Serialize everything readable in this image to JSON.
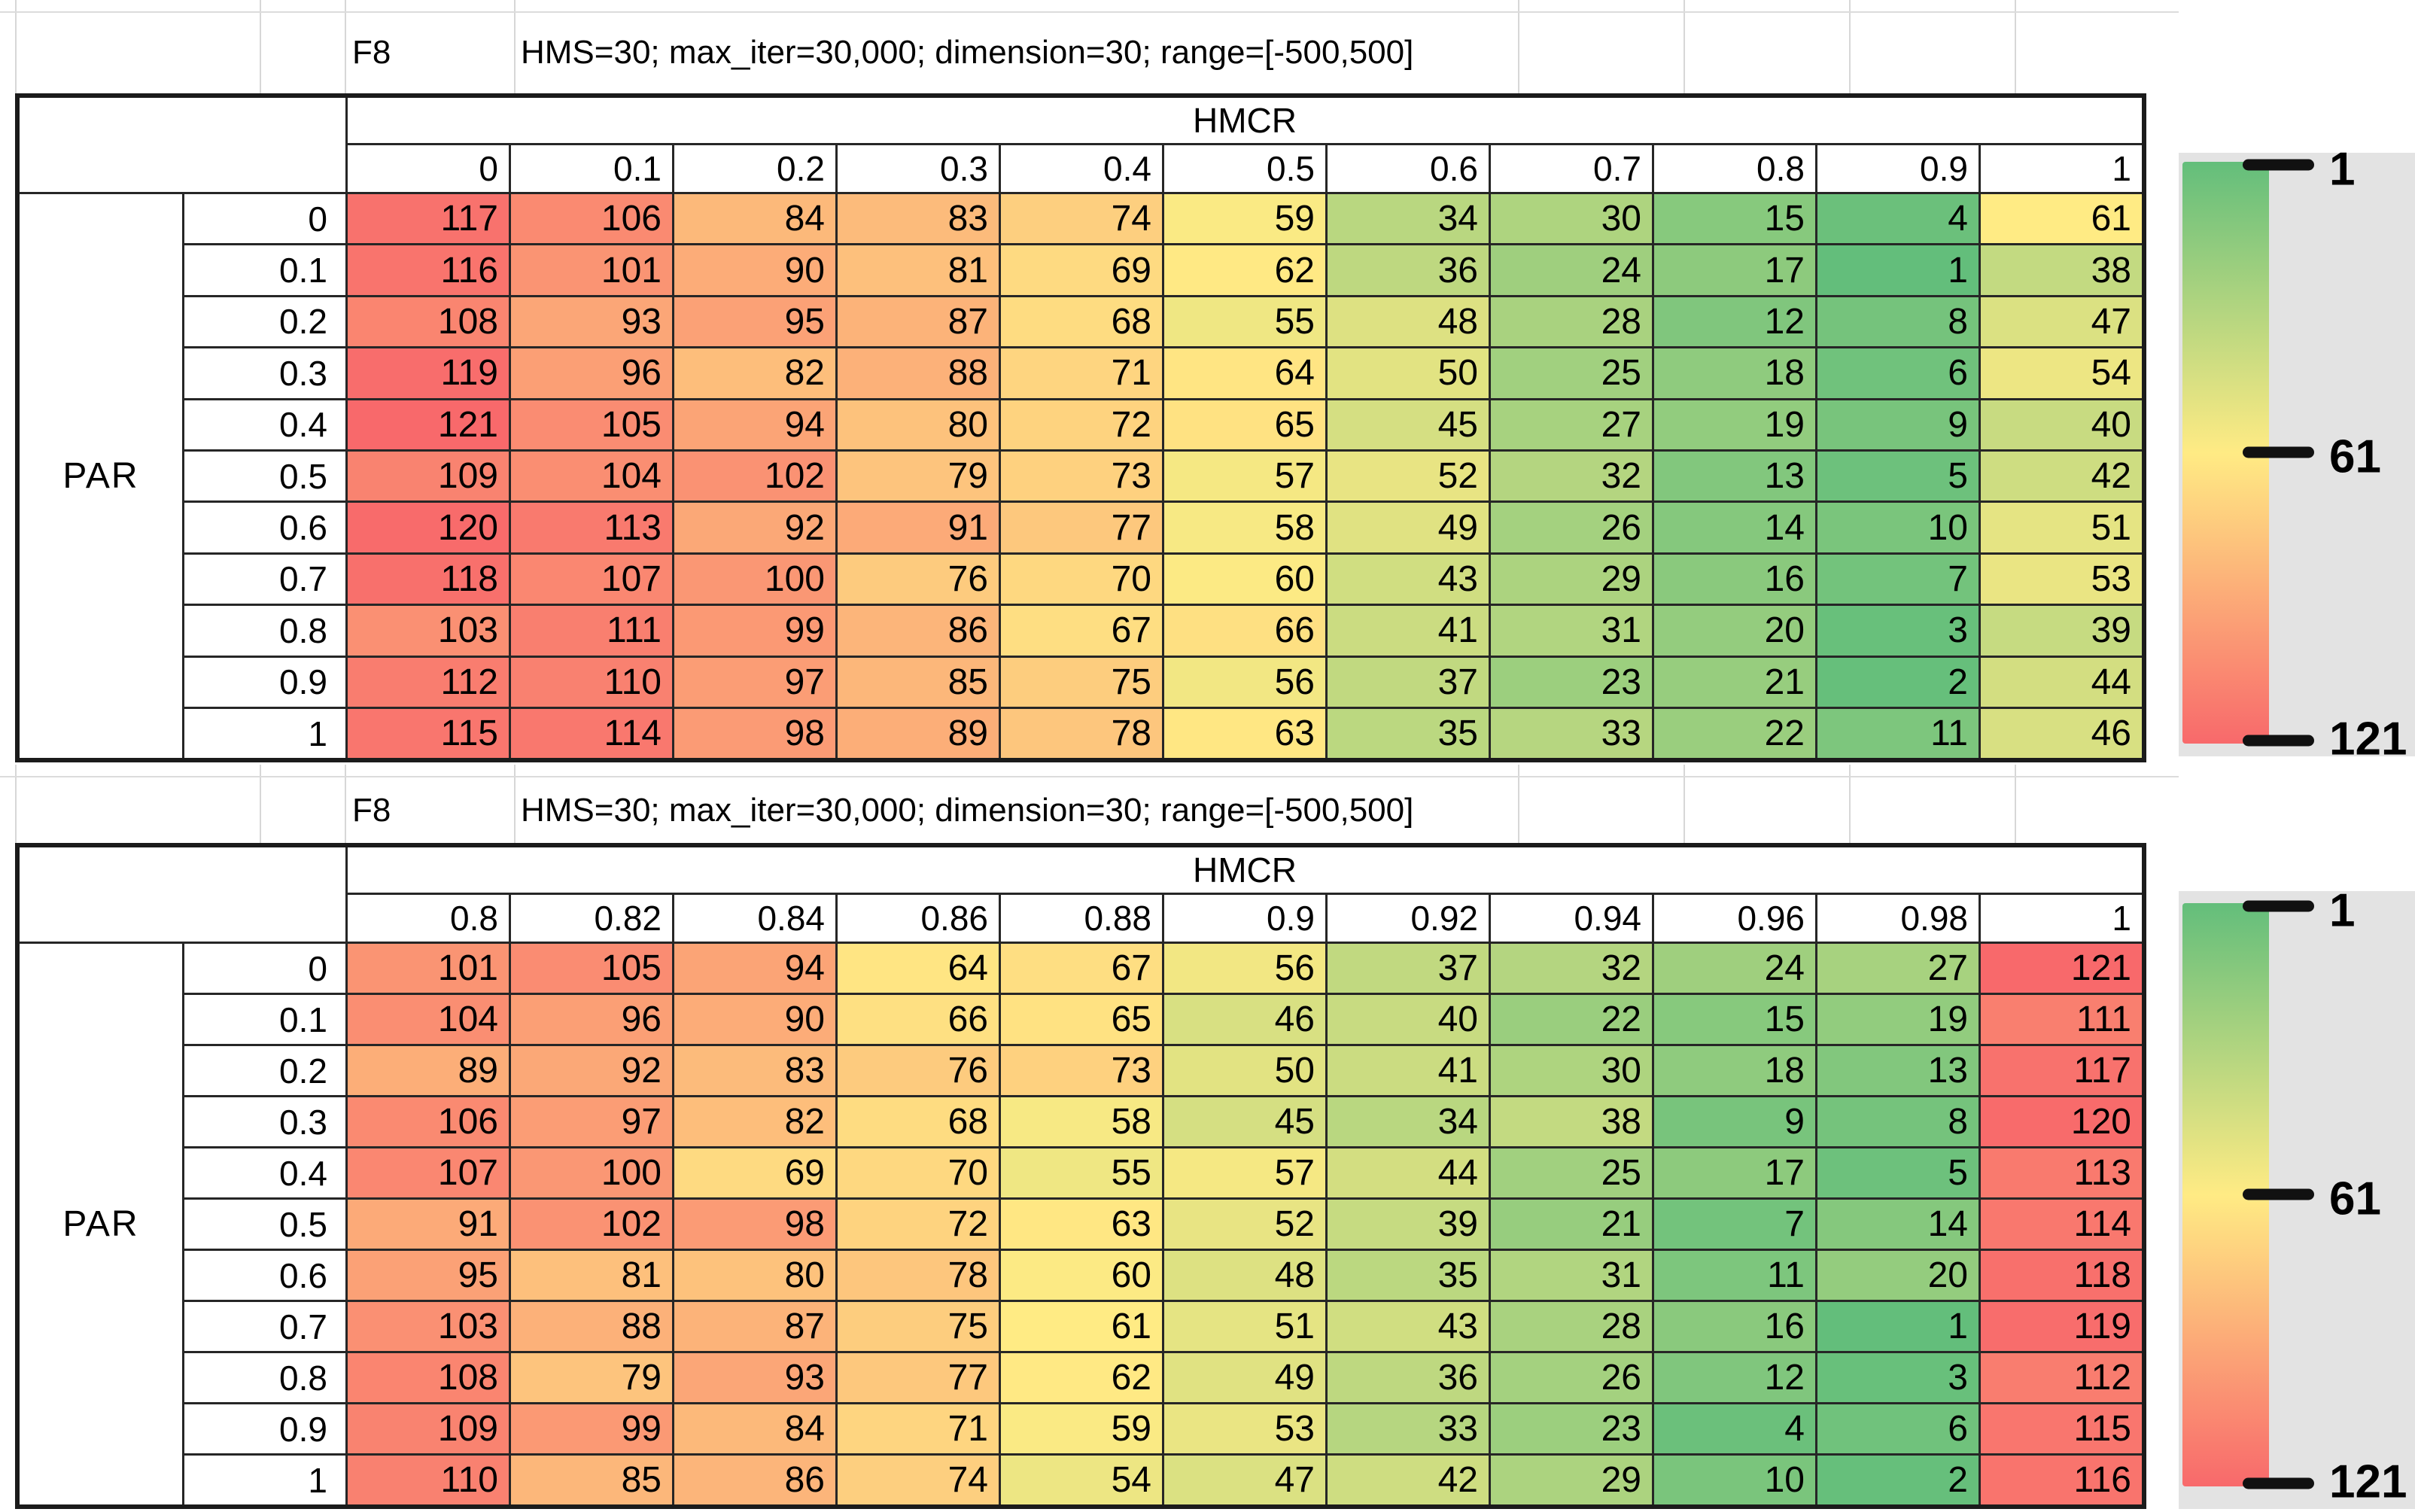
{
  "titles": {
    "function_label": "F8",
    "settings": "HMS=30; max_iter=30,000; dimension=30; range=[-500,500]"
  },
  "axis": {
    "col_label": "HMCR",
    "row_label": "PAR"
  },
  "legend": {
    "ticks": [
      "1",
      "61",
      "121"
    ]
  },
  "colors": {
    "min_color": "#63BE7B",
    "mid_color": "#FFEB84",
    "max_color": "#F8696B",
    "legend_panel": "#e3e3e3"
  },
  "chart_data": [
    {
      "type": "heatmap",
      "title": "F8",
      "subtitle": "HMS=30; max_iter=30,000; dimension=30; range=[-500,500]",
      "x_axis_label": "HMCR",
      "y_axis_label": "PAR",
      "x_categories": [
        "0",
        "0.1",
        "0.2",
        "0.3",
        "0.4",
        "0.5",
        "0.6",
        "0.7",
        "0.8",
        "0.9",
        "1"
      ],
      "y_categories": [
        "0",
        "0.1",
        "0.2",
        "0.3",
        "0.4",
        "0.5",
        "0.6",
        "0.7",
        "0.8",
        "0.9",
        "1"
      ],
      "values": [
        [
          117,
          106,
          84,
          83,
          74,
          59,
          34,
          30,
          15,
          4,
          61
        ],
        [
          116,
          101,
          90,
          81,
          69,
          62,
          36,
          24,
          17,
          1,
          38
        ],
        [
          108,
          93,
          95,
          87,
          68,
          55,
          48,
          28,
          12,
          8,
          47
        ],
        [
          119,
          96,
          82,
          88,
          71,
          64,
          50,
          25,
          18,
          6,
          54
        ],
        [
          121,
          105,
          94,
          80,
          72,
          65,
          45,
          27,
          19,
          9,
          40
        ],
        [
          109,
          104,
          102,
          79,
          73,
          57,
          52,
          32,
          13,
          5,
          42
        ],
        [
          120,
          113,
          92,
          91,
          77,
          58,
          49,
          26,
          14,
          10,
          51
        ],
        [
          118,
          107,
          100,
          76,
          70,
          60,
          43,
          29,
          16,
          7,
          53
        ],
        [
          103,
          111,
          99,
          86,
          67,
          66,
          41,
          31,
          20,
          3,
          39
        ],
        [
          112,
          110,
          97,
          85,
          75,
          56,
          37,
          23,
          21,
          2,
          44
        ],
        [
          115,
          114,
          98,
          89,
          78,
          63,
          35,
          33,
          22,
          11,
          46
        ]
      ],
      "color_scale": {
        "min": 1,
        "mid": 61,
        "max": 121,
        "min_color": "#63BE7B",
        "mid_color": "#FFEB84",
        "max_color": "#F8696B"
      },
      "legend_ticks": [
        1,
        61,
        121
      ]
    },
    {
      "type": "heatmap",
      "title": "F8",
      "subtitle": "HMS=30; max_iter=30,000; dimension=30; range=[-500,500]",
      "x_axis_label": "HMCR",
      "y_axis_label": "PAR",
      "x_categories": [
        "0.8",
        "0.82",
        "0.84",
        "0.86",
        "0.88",
        "0.9",
        "0.92",
        "0.94",
        "0.96",
        "0.98",
        "1"
      ],
      "y_categories": [
        "0",
        "0.1",
        "0.2",
        "0.3",
        "0.4",
        "0.5",
        "0.6",
        "0.7",
        "0.8",
        "0.9",
        "1"
      ],
      "values": [
        [
          101,
          105,
          94,
          64,
          67,
          56,
          37,
          32,
          24,
          27,
          121
        ],
        [
          104,
          96,
          90,
          66,
          65,
          46,
          40,
          22,
          15,
          19,
          111
        ],
        [
          89,
          92,
          83,
          76,
          73,
          50,
          41,
          30,
          18,
          13,
          117
        ],
        [
          106,
          97,
          82,
          68,
          58,
          45,
          34,
          38,
          9,
          8,
          120
        ],
        [
          107,
          100,
          69,
          70,
          55,
          57,
          44,
          25,
          17,
          5,
          113
        ],
        [
          91,
          102,
          98,
          72,
          63,
          52,
          39,
          21,
          7,
          14,
          114
        ],
        [
          95,
          81,
          80,
          78,
          60,
          48,
          35,
          31,
          11,
          20,
          118
        ],
        [
          103,
          88,
          87,
          75,
          61,
          51,
          43,
          28,
          16,
          1,
          119
        ],
        [
          108,
          79,
          93,
          77,
          62,
          49,
          36,
          26,
          12,
          3,
          112
        ],
        [
          109,
          99,
          84,
          71,
          59,
          53,
          33,
          23,
          4,
          6,
          115
        ],
        [
          110,
          85,
          86,
          74,
          54,
          47,
          42,
          29,
          10,
          2,
          116
        ]
      ],
      "color_scale": {
        "min": 1,
        "mid": 61,
        "max": 121,
        "min_color": "#63BE7B",
        "mid_color": "#FFEB84",
        "max_color": "#F8696B"
      },
      "legend_ticks": [
        1,
        61,
        121
      ]
    }
  ]
}
